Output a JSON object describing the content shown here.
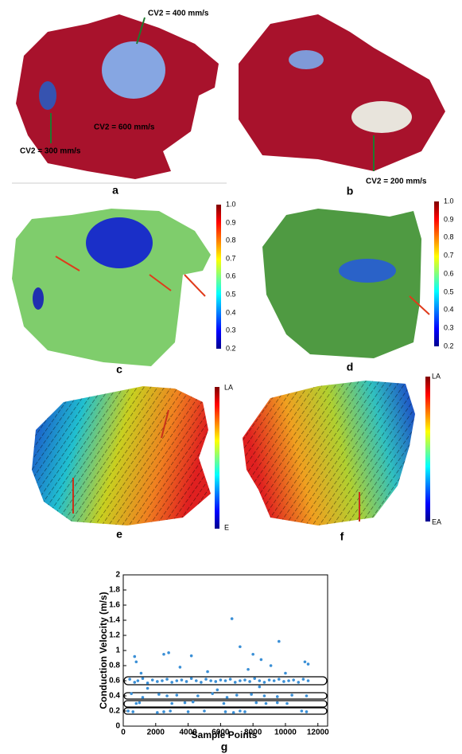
{
  "panels": {
    "a": {
      "label": "a",
      "annotations": [
        "CV2 = 400 mm/s",
        "CV2 = 600 mm/s",
        "CV2 = 300 mm/s"
      ]
    },
    "b": {
      "label": "b",
      "annotations": [
        "CV2 = 200 mm/s"
      ]
    },
    "c": {
      "label": "c",
      "colorbar": [
        "1.0",
        "0.9",
        "0.8",
        "0.7",
        "0.6",
        "0.5",
        "0.4",
        "0.3",
        "0.2"
      ]
    },
    "d": {
      "label": "d",
      "colorbar": [
        "1.0",
        "0.9",
        "0.8",
        "0.7",
        "0.6",
        "0.5",
        "0.4",
        "0.3",
        "0.2"
      ]
    },
    "e": {
      "label": "e",
      "colorbar": [
        "LA",
        "E"
      ]
    },
    "f": {
      "label": "f",
      "colorbar": [
        "LA",
        "EA"
      ]
    },
    "g": {
      "label": "g"
    }
  },
  "chart_data": {
    "type": "scatter",
    "x_label": "Sample Points",
    "y_label": "Conduction Velocity (m/s)",
    "color": "#3a8fd6",
    "x": [
      400,
      700,
      900,
      1200,
      1500,
      1800,
      2100,
      2400,
      2700,
      3000,
      3300,
      3600,
      3900,
      4200,
      4500,
      4800,
      5100,
      5400,
      5700,
      6000,
      6300,
      6600,
      6900,
      7200,
      7500,
      7800,
      8100,
      8400,
      8700,
      9000,
      9300,
      9600,
      9900,
      10200,
      10500,
      10800,
      11100,
      11400,
      700,
      800,
      2500,
      2800,
      3500,
      4200,
      6700,
      7200,
      8000,
      8500,
      9600,
      9100,
      11200,
      11400,
      5200,
      1100,
      7700,
      10000,
      500,
      1200,
      2200,
      2700,
      3300,
      4600,
      5500,
      6400,
      7000,
      7900,
      8700,
      9500,
      10400,
      11300,
      800,
      1000,
      3000,
      3800,
      4300,
      6200,
      8200,
      8800,
      9500,
      10100,
      300,
      600,
      2100,
      2500,
      2900,
      4000,
      5000,
      6300,
      6800,
      7200,
      7500,
      11000,
      11300,
      1500,
      5800,
      8400
    ],
    "y": [
      0.62,
      0.58,
      0.6,
      0.63,
      0.57,
      0.61,
      0.59,
      0.6,
      0.62,
      0.58,
      0.6,
      0.61,
      0.59,
      0.63,
      0.6,
      0.58,
      0.62,
      0.6,
      0.59,
      0.61,
      0.6,
      0.62,
      0.58,
      0.6,
      0.61,
      0.59,
      0.63,
      0.6,
      0.58,
      0.61,
      0.6,
      0.62,
      0.59,
      0.6,
      0.61,
      0.58,
      0.62,
      0.6,
      0.92,
      0.85,
      0.95,
      0.97,
      0.78,
      0.93,
      1.42,
      1.05,
      0.95,
      0.88,
      1.12,
      0.8,
      0.85,
      0.82,
      0.72,
      0.7,
      0.75,
      0.7,
      0.43,
      0.38,
      0.42,
      0.4,
      0.41,
      0.4,
      0.43,
      0.38,
      0.41,
      0.42,
      0.4,
      0.39,
      0.41,
      0.4,
      0.3,
      0.31,
      0.3,
      0.31,
      0.32,
      0.3,
      0.31,
      0.3,
      0.31,
      0.3,
      0.2,
      0.19,
      0.18,
      0.19,
      0.2,
      0.19,
      0.2,
      0.19,
      0.18,
      0.2,
      0.19,
      0.2,
      0.19,
      0.5,
      0.48,
      0.52
    ],
    "xlim": [
      0,
      12600
    ],
    "ylim": [
      0,
      2
    ],
    "xticks": [
      0,
      2000,
      4000,
      6000,
      8000,
      10000,
      12000
    ],
    "yticks": [
      0,
      0.2,
      0.4,
      0.6,
      0.8,
      1,
      1.2,
      1.4,
      1.6,
      1.8,
      2
    ]
  }
}
